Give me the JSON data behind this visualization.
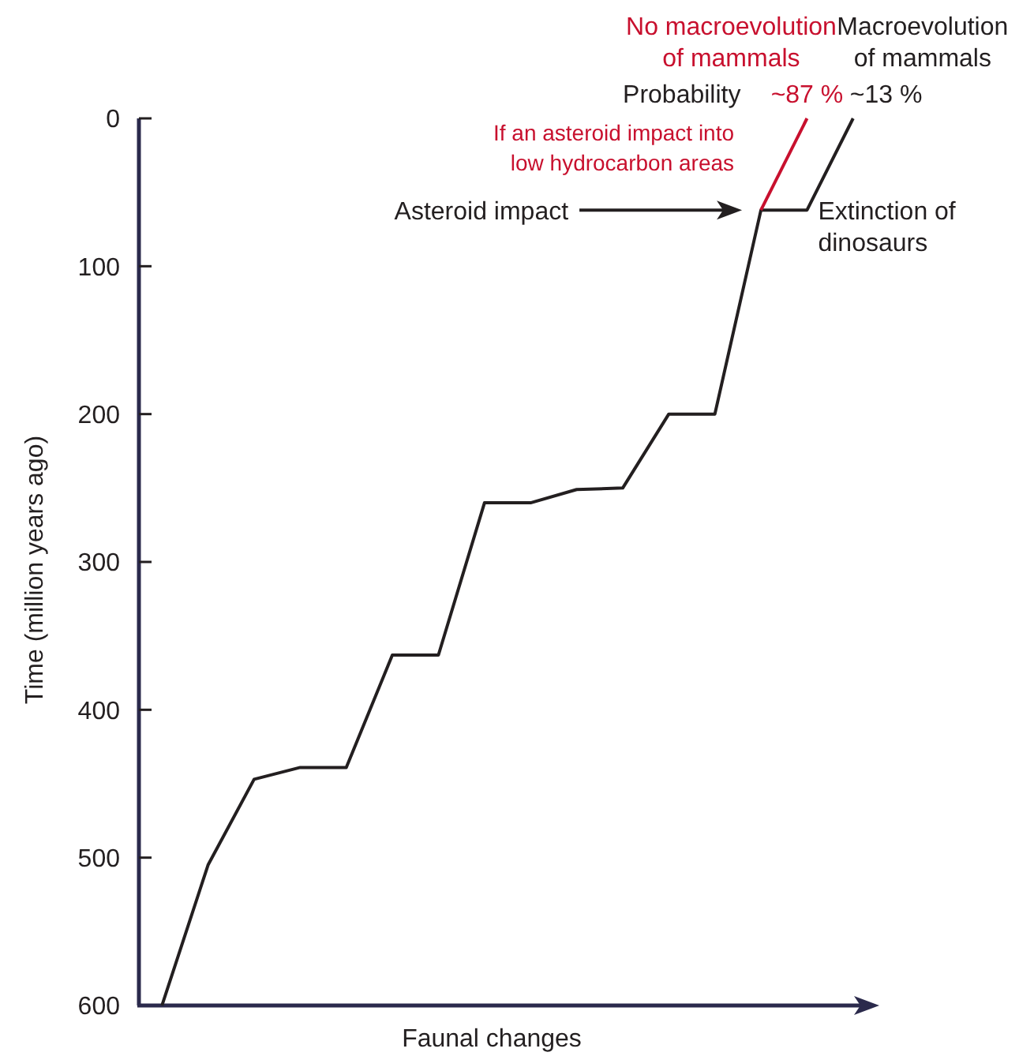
{
  "chart_data": {
    "type": "line",
    "xlabel": "Faunal changes",
    "ylabel": "Time (million years ago)",
    "categories": [
      null,
      null,
      null,
      null,
      null,
      null,
      null,
      null,
      null,
      null,
      null,
      null,
      null,
      null,
      null,
      null
    ],
    "ylim": [
      600,
      0
    ],
    "yticks": [
      0,
      100,
      200,
      300,
      400,
      500,
      600
    ],
    "grid": false,
    "legend": false,
    "marker": "none",
    "line_style": "solid",
    "series": [
      {
        "name": "Macroevolution of mammals",
        "color": "#231f20",
        "values": [
          600,
          505,
          447,
          439,
          439,
          363,
          363,
          260,
          260,
          251,
          250,
          200,
          200,
          62,
          62,
          0
        ]
      },
      {
        "name": "No macroevolution of mammals",
        "color": "#c8102e",
        "values": [
          null,
          null,
          null,
          null,
          null,
          null,
          null,
          null,
          null,
          null,
          null,
          null,
          null,
          62,
          0,
          null
        ]
      }
    ],
    "annotations": [
      "Probability",
      "~87 %",
      "~13 %",
      "If an asteroid impact into low hydrocarbon areas",
      "Asteroid impact",
      "Extinction of dinosaurs"
    ]
  }
}
